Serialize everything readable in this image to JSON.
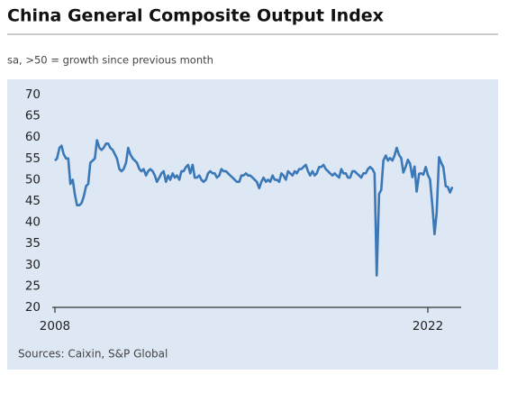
{
  "chart_data": {
    "type": "line",
    "title": "China General Composite Output Index",
    "subtitle": "sa, >50 = growth since previous month",
    "source": "Sources: Caixin, S&P Global",
    "xlim": [
      2007.9,
      2023.25
    ],
    "xticks": [
      2008,
      2022
    ],
    "ylim": [
      20,
      70
    ],
    "yticks": [
      20,
      25,
      30,
      35,
      40,
      45,
      50,
      55,
      60,
      65,
      70
    ],
    "grid": false,
    "x": [
      2008,
      2008.08,
      2008.17,
      2008.25,
      2008.33,
      2008.42,
      2008.5,
      2008.58,
      2008.67,
      2008.75,
      2008.83,
      2008.92,
      2009,
      2009.08,
      2009.17,
      2009.25,
      2009.33,
      2009.42,
      2009.5,
      2009.58,
      2009.67,
      2009.75,
      2009.83,
      2009.92,
      2010,
      2010.08,
      2010.17,
      2010.25,
      2010.33,
      2010.42,
      2010.5,
      2010.58,
      2010.67,
      2010.75,
      2010.83,
      2010.92,
      2011,
      2011.08,
      2011.17,
      2011.25,
      2011.33,
      2011.42,
      2011.5,
      2011.58,
      2011.67,
      2011.75,
      2011.83,
      2011.92,
      2012,
      2012.08,
      2012.17,
      2012.25,
      2012.33,
      2012.42,
      2012.5,
      2012.58,
      2012.67,
      2012.75,
      2012.83,
      2012.92,
      2013,
      2013.08,
      2013.17,
      2013.25,
      2013.33,
      2013.42,
      2013.5,
      2013.58,
      2013.67,
      2013.75,
      2013.83,
      2013.92,
      2014,
      2014.08,
      2014.17,
      2014.25,
      2014.33,
      2014.42,
      2014.5,
      2014.58,
      2014.67,
      2014.75,
      2014.83,
      2014.92,
      2015,
      2015.08,
      2015.17,
      2015.25,
      2015.33,
      2015.42,
      2015.5,
      2015.58,
      2015.67,
      2015.75,
      2015.83,
      2015.92,
      2016,
      2016.08,
      2016.17,
      2016.25,
      2016.33,
      2016.42,
      2016.5,
      2016.58,
      2016.67,
      2016.75,
      2016.83,
      2016.92,
      2017,
      2017.08,
      2017.17,
      2017.25,
      2017.33,
      2017.42,
      2017.5,
      2017.58,
      2017.67,
      2017.75,
      2017.83,
      2017.92,
      2018,
      2018.08,
      2018.17,
      2018.25,
      2018.33,
      2018.42,
      2018.5,
      2018.58,
      2018.67,
      2018.75,
      2018.83,
      2018.92,
      2019,
      2019.08,
      2019.17,
      2019.25,
      2019.33,
      2019.42,
      2019.5,
      2019.58,
      2019.67,
      2019.75,
      2019.83,
      2019.92,
      2020,
      2020.08,
      2020.17,
      2020.25,
      2020.33,
      2020.42,
      2020.5,
      2020.58,
      2020.67,
      2020.75,
      2020.83,
      2020.92,
      2021,
      2021.08,
      2021.17,
      2021.25,
      2021.33,
      2021.42,
      2021.5,
      2021.58,
      2021.67,
      2021.75,
      2021.83,
      2021.92,
      2022,
      2022.08,
      2022.17,
      2022.25,
      2022.33,
      2022.42,
      2022.5,
      2022.58,
      2022.67,
      2022.75,
      2022.83,
      2022.92
    ],
    "series": [
      {
        "color": "#3a78b8",
        "values": [
          54.5,
          55,
          57.5,
          58,
          56,
          55,
          55,
          49,
          50,
          46.5,
          44,
          44,
          44.5,
          46,
          48.5,
          49,
          54,
          54.5,
          55,
          59.3,
          57.5,
          57,
          57.5,
          58.5,
          58.5,
          57.5,
          57,
          56,
          55,
          52.5,
          52,
          52.5,
          54,
          57.5,
          56,
          55,
          54.5,
          54,
          52.5,
          52,
          52.5,
          51,
          52,
          52.5,
          52,
          51,
          49.5,
          50.5,
          51.5,
          52,
          49.5,
          51,
          50,
          51.5,
          50.5,
          51,
          50,
          52,
          52,
          53,
          53.5,
          51.5,
          53.5,
          50.5,
          50.5,
          51,
          50,
          49.5,
          50,
          51.5,
          52,
          51.5,
          51.5,
          50.5,
          51,
          52.5,
          52,
          52,
          51.5,
          51,
          50.5,
          50,
          49.5,
          49.5,
          51,
          51,
          51.5,
          51,
          51,
          50.5,
          50,
          49.5,
          48,
          49.5,
          50.5,
          49.5,
          50,
          49.5,
          51,
          50,
          50,
          49.5,
          51.5,
          51,
          50,
          52,
          51.5,
          51,
          52,
          51.5,
          52.5,
          52.5,
          53,
          53.5,
          52,
          51,
          52,
          51,
          51.5,
          53,
          53,
          53.5,
          52.5,
          52,
          51.5,
          51,
          51.5,
          51,
          50.5,
          52.5,
          51.5,
          51.5,
          50.5,
          50.5,
          52,
          52,
          51.5,
          51,
          50.5,
          51.5,
          51.5,
          52.5,
          53,
          52.5,
          51.5,
          27.5,
          46.7,
          47.6,
          54.5,
          55.7,
          54.5,
          55.1,
          54.5,
          55.7,
          57.5,
          55.8,
          55.1,
          51.7,
          53.1,
          54.7,
          53.8,
          50.6,
          53.1,
          47.2,
          51.4,
          51.5,
          51.2,
          53,
          51.1,
          50.1,
          43.9,
          37.2,
          42.2,
          55.3,
          54,
          53,
          48.5,
          48.3,
          47,
          48.3
        ]
      }
    ]
  }
}
